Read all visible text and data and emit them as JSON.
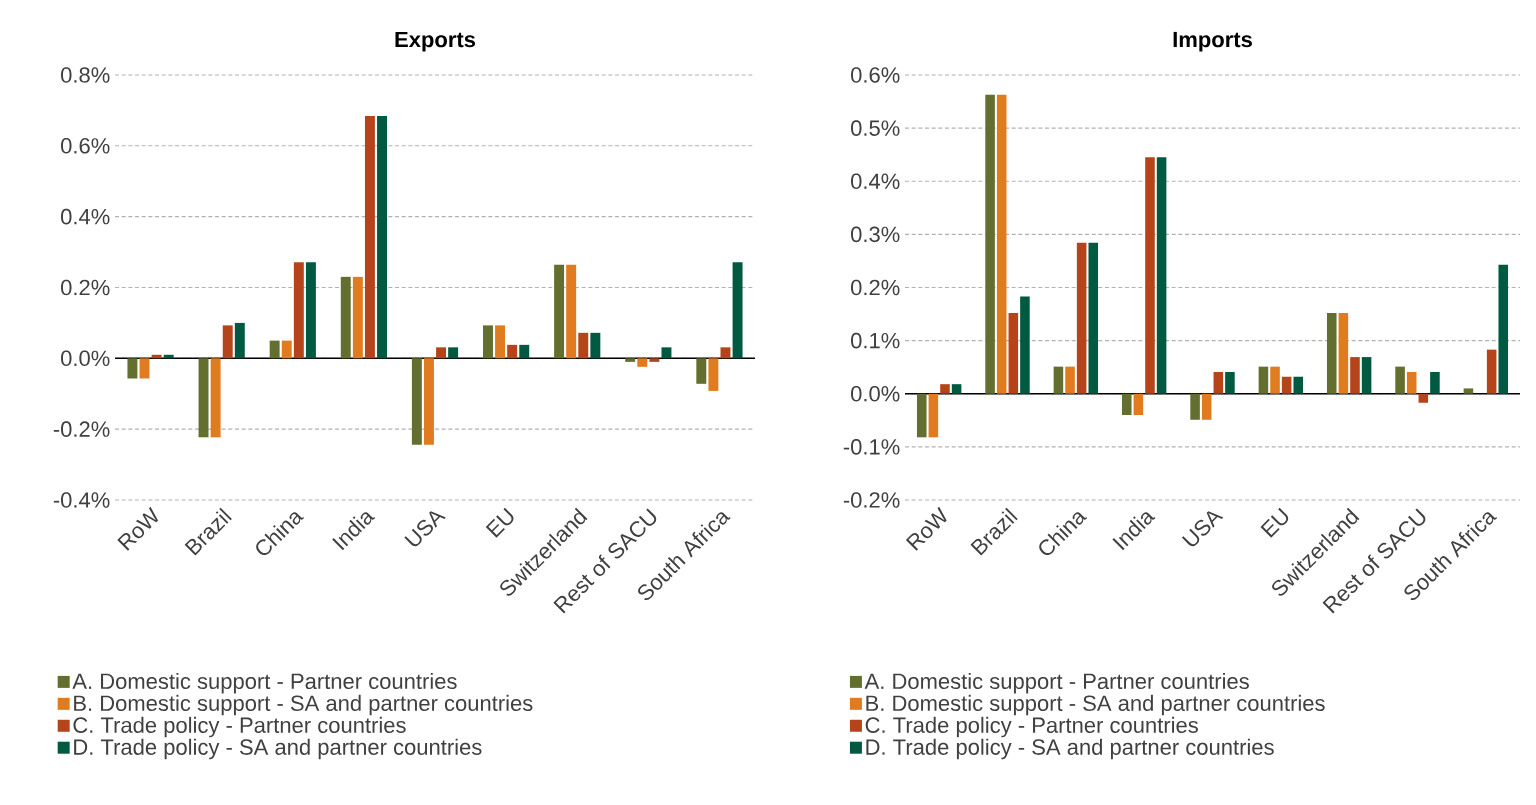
{
  "chart_data": [
    {
      "type": "bar",
      "title": "Exports",
      "categories": [
        "RoW",
        "Brazil",
        "China",
        "India",
        "USA",
        "EU",
        "Switzerland",
        "Rest of SACU",
        "South Africa"
      ],
      "series": [
        {
          "name": "A. Domestic support - Partner countries",
          "color": "#636f2f",
          "values": [
            -0.057,
            -0.223,
            0.05,
            0.23,
            -0.244,
            0.093,
            0.264,
            -0.01,
            -0.072
          ]
        },
        {
          "name": "B. Domestic support -  SA and partner countries",
          "color": "#e07b20",
          "values": [
            -0.057,
            -0.223,
            0.05,
            0.23,
            -0.244,
            0.093,
            0.264,
            -0.024,
            -0.092
          ]
        },
        {
          "name": "C. Trade policy - Partner countries",
          "color": "#b5441b",
          "values": [
            0.01,
            0.093,
            0.271,
            0.684,
            0.031,
            0.038,
            0.072,
            -0.01,
            0.031
          ]
        },
        {
          "name": "D. Trade policy - SA and partner countries",
          "color": "#005a41",
          "values": [
            0.01,
            0.1,
            0.271,
            0.684,
            0.031,
            0.038,
            0.072,
            0.031,
            0.271
          ]
        }
      ],
      "ylim": [
        -0.4,
        0.8
      ],
      "yticks": [
        {
          "value": -0.4,
          "label": "-0.4%"
        },
        {
          "value": -0.2,
          "label": "-0.2%"
        },
        {
          "value": 0,
          "label": "0.0%"
        },
        {
          "value": 0.2,
          "label": "0.2%"
        },
        {
          "value": 0.4,
          "label": "0.4%"
        },
        {
          "value": 0.6,
          "label": "0.6%"
        },
        {
          "value": 0.8,
          "label": "0.8%"
        }
      ],
      "grid": "y",
      "legend": "bottom"
    },
    {
      "type": "bar",
      "title": "Imports",
      "categories": [
        "RoW",
        "Brazil",
        "China",
        "India",
        "USA",
        "EU",
        "Switzerland",
        "Rest of SACU",
        "South Africa"
      ],
      "series": [
        {
          "name": "A. Domestic support - Partner countries",
          "color": "#636f2f",
          "values": [
            -0.082,
            0.563,
            0.051,
            -0.04,
            -0.049,
            0.051,
            0.152,
            0.051,
            0.01
          ]
        },
        {
          "name": "B. Domestic support -  SA and partner countries",
          "color": "#e07b20",
          "values": [
            -0.082,
            0.563,
            0.051,
            -0.04,
            -0.049,
            0.051,
            0.152,
            0.041,
            0
          ]
        },
        {
          "name": "C. Trade policy - Partner countries",
          "color": "#b5441b",
          "values": [
            0.018,
            0.152,
            0.284,
            0.445,
            0.041,
            0.032,
            0.069,
            -0.017,
            0.083
          ]
        },
        {
          "name": "D. Trade policy - SA and partner countries",
          "color": "#005a41",
          "values": [
            0.018,
            0.183,
            0.284,
            0.445,
            0.041,
            0.032,
            0.069,
            0.041,
            0.243
          ]
        }
      ],
      "ylim": [
        -0.2,
        0.6
      ],
      "yticks": [
        {
          "value": -0.2,
          "label": "-0.2%"
        },
        {
          "value": -0.1,
          "label": "-0.1%"
        },
        {
          "value": 0,
          "label": "0.0%"
        },
        {
          "value": 0.1,
          "label": "0.1%"
        },
        {
          "value": 0.2,
          "label": "0.2%"
        },
        {
          "value": 0.3,
          "label": "0.3%"
        },
        {
          "value": 0.4,
          "label": "0.4%"
        },
        {
          "value": 0.5,
          "label": "0.5%"
        },
        {
          "value": 0.6,
          "label": "0.6%"
        }
      ],
      "grid": "y",
      "legend": "bottom"
    }
  ]
}
